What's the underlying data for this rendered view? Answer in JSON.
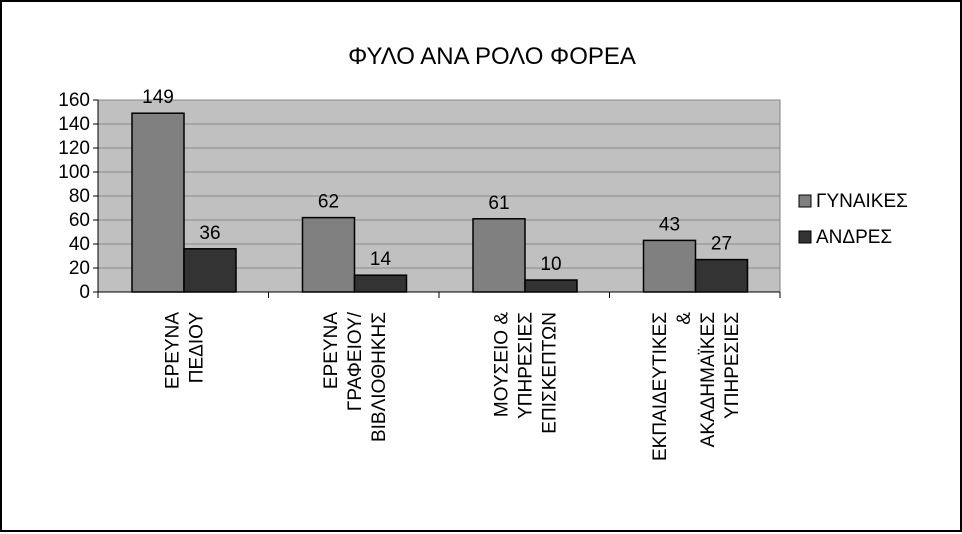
{
  "chart_data": {
    "type": "bar",
    "title": "ΦΥΛΟ ΑΝΑ ΡΟΛΟ ΦΟΡΕΑ",
    "xlabel": "",
    "ylabel": "",
    "ylim": [
      0,
      160
    ],
    "yticks": [
      0,
      20,
      40,
      60,
      80,
      100,
      120,
      140,
      160
    ],
    "grid": true,
    "legend_position": "right",
    "categories": [
      [
        "ΕΡΕΥΝΑ",
        "ΠΕΔΙΟΥ"
      ],
      [
        "ΕΡΕΥΝΑ",
        "ΓΡΑΦΕΙΟΥ/",
        "ΒΙΒΛΙΟΘΗΚΗΣ"
      ],
      [
        "ΜΟΥΣΕΙΟ &",
        "ΥΠΗΡΕΣΙΕΣ",
        "ΕΠΙΣΚΕΠΤΩΝ"
      ],
      [
        "ΕΚΠΑΙΔΕΥΤΙΚΕΣ",
        "&",
        "ΑΚΑΔΗΜΑΪΚΕΣ",
        "ΥΠΗΡΕΣΙΕΣ"
      ]
    ],
    "series": [
      {
        "name": "ΓΥΝΑΙΚΕΣ",
        "values": [
          149,
          62,
          61,
          43
        ],
        "color": "#808080"
      },
      {
        "name": "ΑΝΔΡΕΣ",
        "values": [
          36,
          14,
          10,
          27
        ],
        "color": "#333333"
      }
    ],
    "plot_background": "#c0c0c0"
  }
}
